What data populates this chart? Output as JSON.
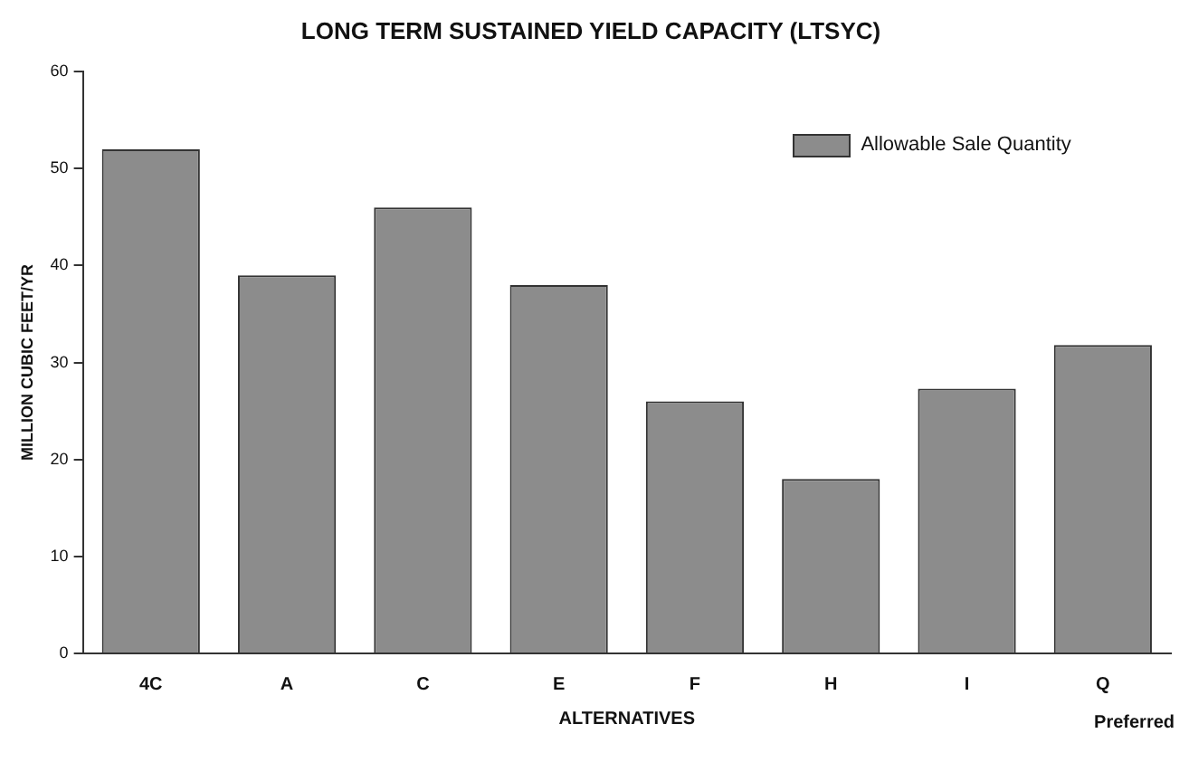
{
  "chart_data": {
    "type": "bar",
    "title": "LONG TERM SUSTAINED YIELD CAPACITY (LTSYC)",
    "xlabel": "ALTERNATIVES",
    "ylabel": "MILLION CUBIC FEET/YR",
    "categories": [
      "4C",
      "A",
      "C",
      "E",
      "F",
      "H",
      "I",
      "Q"
    ],
    "series": [
      {
        "name": "Allowable Sale Quantity",
        "color": "#8c8c8c",
        "values": [
          52,
          39,
          46,
          38,
          26,
          18,
          27.3,
          31.8
        ]
      }
    ],
    "ylim": [
      0,
      60
    ],
    "yticks": [
      0,
      10,
      20,
      30,
      40,
      50,
      60
    ],
    "grid": false,
    "legend": "top right",
    "annotations": [
      "Preferred"
    ]
  }
}
